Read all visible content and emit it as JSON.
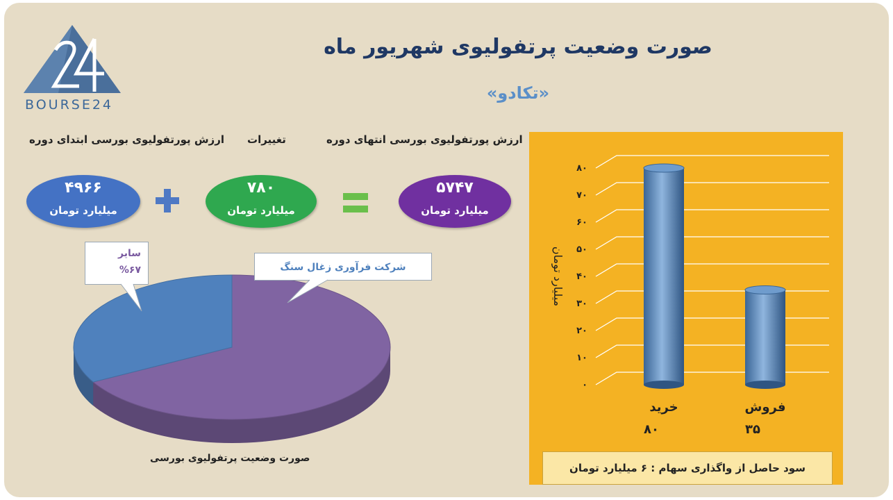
{
  "header": {
    "title": "صورت وضعیت پرتفولیوی شهریور ماه",
    "subtitle": "«تکادو»"
  },
  "logo": {
    "text": "BOURSE24",
    "icon": "triangle-24-logo"
  },
  "summary": {
    "columns": {
      "start_label": "ارزش پورتفولیوی بورسی ابتدای دوره",
      "change_label": "تغییرات",
      "end_label": "ارزش پورتفولیوی بورسی انتهای دوره"
    },
    "start": {
      "value": "۴۹۶۶",
      "unit": "میلیارد تومان",
      "color": "#4472c4"
    },
    "change": {
      "value": "۷۸۰",
      "unit": "میلیارد تومان",
      "color": "#2fa84f"
    },
    "end": {
      "value": "۵۷۴۷",
      "unit": "میلیارد تومان",
      "color": "#7030a0"
    },
    "plus_icon": "plus-icon",
    "equals_icon": "equals-icon"
  },
  "chart_data": [
    {
      "type": "pie",
      "title": "صورت وضعیت پرتفولیوی بورسی",
      "slices": [
        {
          "label": "سایر",
          "value": 67,
          "value_label": "%۶۷",
          "color": "#8064a2"
        },
        {
          "label": "شرکت فرآوری زغال سنگ",
          "value": 33,
          "color": "#4f81bd"
        }
      ]
    },
    {
      "type": "bar",
      "categories": [
        "خرید",
        "فروش"
      ],
      "values": [
        80,
        35
      ],
      "value_labels": [
        "۸۰",
        "۳۵"
      ],
      "ylabel": "میلیارد تومان",
      "ylim": [
        0,
        80
      ],
      "yticks": [
        "۰",
        "۱۰",
        "۲۰",
        "۳۰",
        "۴۰",
        "۵۰",
        "۶۰",
        "۷۰",
        "۸۰"
      ],
      "grid": true,
      "colors": {
        "bar": "#4f81bd",
        "panel": "#f4b223"
      }
    }
  ],
  "footer": {
    "profit_text": "سود حاصل از واگذاری سهام :  ۶  میلیارد تومان"
  }
}
